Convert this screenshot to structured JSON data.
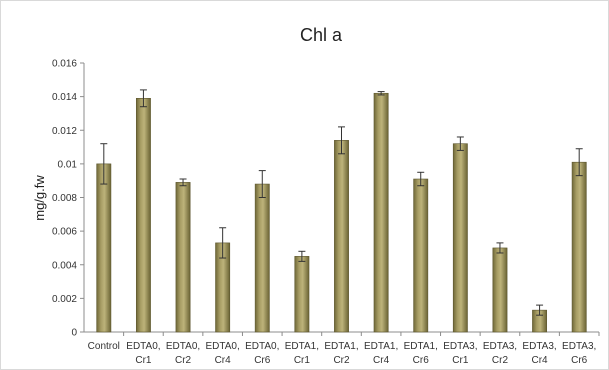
{
  "chart_data": {
    "type": "bar",
    "title": "Chl a",
    "ylabel": "mg/g.fw",
    "xlabel": "",
    "ylim": [
      0,
      0.016
    ],
    "yticks": [
      "0",
      "0.002",
      "0.004",
      "0.006",
      "0.008",
      "0.01",
      "0.012",
      "0.014",
      "0.016"
    ],
    "grid": false,
    "legend": "none",
    "bar_color": "#8c8350",
    "error_color": "#333333",
    "categories": [
      [
        "Control"
      ],
      [
        "EDTA0,",
        "Cr1"
      ],
      [
        "EDTA0,",
        "Cr2"
      ],
      [
        "EDTA0,",
        "Cr4"
      ],
      [
        "EDTA0,",
        "Cr6"
      ],
      [
        "EDTA1,",
        "Cr1"
      ],
      [
        "EDTA1,",
        "Cr2"
      ],
      [
        "EDTA1,",
        "Cr4"
      ],
      [
        "EDTA1,",
        "Cr6"
      ],
      [
        "EDTA3,",
        "Cr1"
      ],
      [
        "EDTA3,",
        "Cr2"
      ],
      [
        "EDTA3,",
        "Cr4"
      ],
      [
        "EDTA3,",
        "Cr6"
      ]
    ],
    "values": [
      0.01,
      0.0139,
      0.0089,
      0.0053,
      0.0088,
      0.0045,
      0.0114,
      0.0142,
      0.0091,
      0.0112,
      0.005,
      0.0013,
      0.0101
    ],
    "errors": [
      0.0012,
      0.0005,
      0.0002,
      0.0009,
      0.0008,
      0.0003,
      0.0008,
      0.0001,
      0.0004,
      0.0004,
      0.0003,
      0.0003,
      0.0008
    ]
  }
}
